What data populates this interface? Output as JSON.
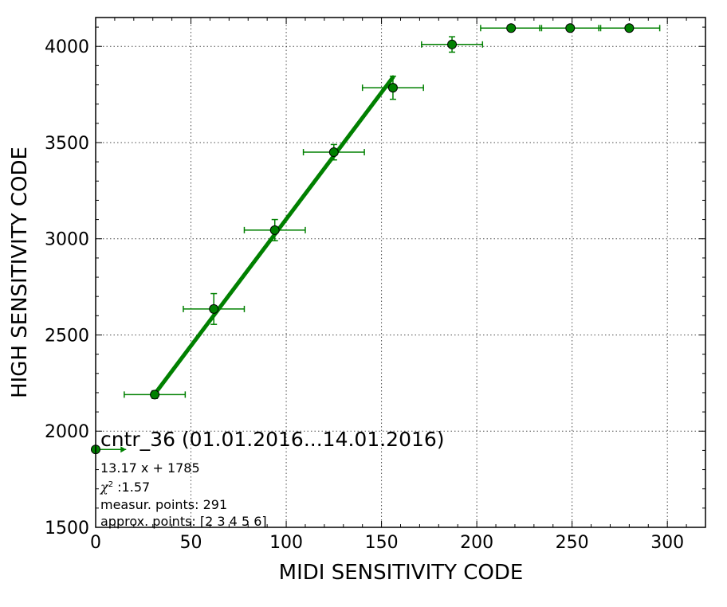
{
  "chart_data": {
    "type": "scatter",
    "xlabel": "MIDI SENSITIVITY CODE",
    "ylabel": "HIGH SENSITIVITY CODE",
    "xlim": [
      0,
      320
    ],
    "ylim": [
      1500,
      4150
    ],
    "x_ticks": [
      0,
      50,
      100,
      150,
      200,
      250,
      300
    ],
    "y_ticks": [
      1500,
      2000,
      2500,
      3000,
      3500,
      4000
    ],
    "grid": true,
    "color": "#008000",
    "points": [
      {
        "x": 0,
        "y": 1905,
        "xerr_minus": 0,
        "xerr_plus": 16,
        "yerr": 0
      },
      {
        "x": 31,
        "y": 2190,
        "xerr_minus": 16,
        "xerr_plus": 16,
        "yerr": 20
      },
      {
        "x": 62,
        "y": 2635,
        "xerr_minus": 16,
        "xerr_plus": 16,
        "yerr": 80
      },
      {
        "x": 94,
        "y": 3045,
        "xerr_minus": 16,
        "xerr_plus": 16,
        "yerr": 55
      },
      {
        "x": 125,
        "y": 3450,
        "xerr_minus": 16,
        "xerr_plus": 16,
        "yerr": 40
      },
      {
        "x": 156,
        "y": 3785,
        "xerr_minus": 16,
        "xerr_plus": 16,
        "yerr": 60
      },
      {
        "x": 187,
        "y": 4010,
        "xerr_minus": 16,
        "xerr_plus": 16,
        "yerr": 40
      },
      {
        "x": 218,
        "y": 4095,
        "xerr_minus": 16,
        "xerr_plus": 16,
        "yerr": 0
      },
      {
        "x": 249,
        "y": 4095,
        "xerr_minus": 16,
        "xerr_plus": 16,
        "yerr": 0
      },
      {
        "x": 280,
        "y": 4095,
        "xerr_minus": 16,
        "xerr_plus": 16,
        "yerr": 0
      }
    ],
    "fit": {
      "slope": 13.17,
      "intercept": 1785,
      "x_range": [
        31,
        156
      ]
    },
    "annotation": {
      "title": "cntr_36 (01.01.2016...14.01.2016)",
      "equation": "13.17 x + 1785",
      "chi_symbol": "χ",
      "chi_exponent": "2",
      "chi_value": " :1.57",
      "measur_points": "measur. points: 291",
      "approx_points": "approx. points: [2 3 4 5 6]"
    }
  }
}
